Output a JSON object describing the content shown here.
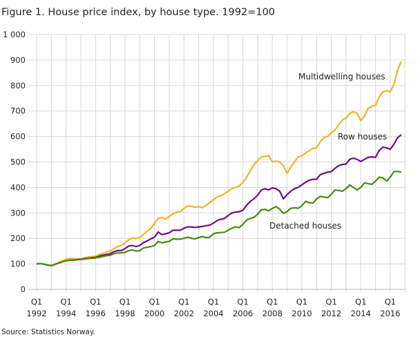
{
  "chart_data": {
    "type": "line",
    "title": "Figure 1. House price index, by house type. 1992=100",
    "source": "Source: Statistics Norway.",
    "xlabel": "",
    "ylabel": "",
    "ylim": [
      0,
      1000
    ],
    "yticks": [
      "0",
      "100",
      "200",
      "300",
      "400",
      "500",
      "600",
      "700",
      "800",
      "900",
      "1 000"
    ],
    "ytick_values": [
      0,
      100,
      200,
      300,
      400,
      500,
      600,
      700,
      800,
      900,
      1000
    ],
    "xticks": [
      {
        "q": "Q1",
        "year": "1992"
      },
      {
        "q": "Q1",
        "year": "1994"
      },
      {
        "q": "Q1",
        "year": "1996"
      },
      {
        "q": "Q1",
        "year": "1998"
      },
      {
        "q": "Q1",
        "year": "2000"
      },
      {
        "q": "Q1",
        "year": "2002"
      },
      {
        "q": "Q1",
        "year": "2004"
      },
      {
        "q": "Q1",
        "year": "2006"
      },
      {
        "q": "Q1",
        "year": "2008"
      },
      {
        "q": "Q1",
        "year": "2010"
      },
      {
        "q": "Q1",
        "year": "2012"
      },
      {
        "q": "Q1",
        "year": "2014"
      },
      {
        "q": "Q1",
        "year": "2016"
      }
    ],
    "x_start": "1992Q1",
    "x_frequency": "quarterly",
    "grid": true,
    "series": [
      {
        "name": "Multidwelling houses",
        "color": "#f0b323",
        "values": [
          100,
          101,
          99,
          95,
          93,
          100,
          106,
          112,
          118,
          121,
          120,
          119,
          120,
          124,
          127,
          128,
          130,
          136,
          141,
          146,
          150,
          160,
          168,
          172,
          182,
          195,
          202,
          199,
          203,
          215,
          228,
          240,
          258,
          278,
          282,
          276,
          286,
          296,
          303,
          305,
          318,
          327,
          326,
          322,
          325,
          320,
          330,
          340,
          352,
          362,
          368,
          376,
          385,
          395,
          400,
          405,
          420,
          440,
          465,
          490,
          505,
          520,
          522,
          525,
          500,
          503,
          500,
          485,
          455,
          480,
          500,
          520,
          525,
          535,
          545,
          553,
          555,
          580,
          595,
          600,
          615,
          625,
          645,
          665,
          672,
          690,
          697,
          690,
          662,
          680,
          710,
          718,
          722,
          755,
          775,
          780,
          775,
          805,
          860,
          895
        ]
      },
      {
        "name": "Row houses",
        "color": "#6a0d8a",
        "values": [
          100,
          101,
          99,
          95,
          93,
          98,
          103,
          108,
          112,
          114,
          115,
          117,
          118,
          120,
          122,
          124,
          125,
          130,
          134,
          137,
          140,
          148,
          152,
          152,
          160,
          170,
          172,
          168,
          172,
          183,
          190,
          198,
          205,
          225,
          215,
          218,
          222,
          232,
          232,
          232,
          240,
          245,
          245,
          243,
          245,
          247,
          250,
          252,
          260,
          270,
          275,
          278,
          290,
          300,
          303,
          305,
          310,
          330,
          345,
          355,
          370,
          390,
          395,
          390,
          398,
          395,
          385,
          355,
          372,
          385,
          395,
          400,
          410,
          420,
          428,
          432,
          432,
          450,
          455,
          460,
          462,
          475,
          485,
          490,
          492,
          510,
          515,
          510,
          502,
          510,
          518,
          520,
          518,
          545,
          558,
          555,
          550,
          570,
          595,
          607
        ]
      },
      {
        "name": "Detached houses",
        "color": "#4a8a0c",
        "values": [
          100,
          101,
          99,
          95,
          93,
          98,
          103,
          108,
          112,
          114,
          115,
          116,
          117,
          119,
          121,
          122,
          123,
          126,
          129,
          132,
          134,
          140,
          143,
          143,
          145,
          152,
          155,
          150,
          152,
          162,
          165,
          168,
          172,
          188,
          183,
          186,
          188,
          198,
          197,
          197,
          200,
          205,
          200,
          198,
          203,
          207,
          203,
          205,
          218,
          222,
          223,
          224,
          232,
          240,
          245,
          242,
          255,
          272,
          278,
          282,
          295,
          312,
          314,
          308,
          318,
          325,
          315,
          298,
          305,
          318,
          320,
          318,
          328,
          345,
          340,
          338,
          355,
          365,
          362,
          360,
          372,
          390,
          388,
          385,
          395,
          410,
          400,
          390,
          400,
          418,
          415,
          412,
          425,
          440,
          438,
          425,
          440,
          462,
          463,
          460
        ]
      }
    ]
  }
}
